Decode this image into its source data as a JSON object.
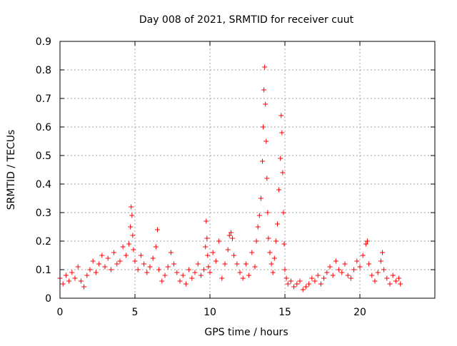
{
  "colors": {
    "series": "#ff0000",
    "grid": "#a0a0a0",
    "axis": "#000000"
  },
  "chart_data": {
    "type": "scatter",
    "title": "Day 008 of 2021, SRMTID for receiver cuut",
    "xlabel": "GPS time / hours",
    "ylabel": "SRMTID / TECUs",
    "xlim": [
      0,
      25
    ],
    "ylim": [
      0,
      0.9
    ],
    "grid": true,
    "marker": "plus",
    "x_ticks": [
      0,
      5,
      10,
      15,
      20
    ],
    "x_tick_labels": [
      "0",
      "5",
      "10",
      "15",
      "20"
    ],
    "y_ticks": [
      0,
      0.1,
      0.2,
      0.3,
      0.4,
      0.5,
      0.6,
      0.7,
      0.8,
      0.9
    ],
    "y_tick_labels": [
      "0",
      "0.1",
      "0.2",
      "0.3",
      "0.4",
      "0.5",
      "0.6",
      "0.7",
      "0.8",
      "0.9"
    ],
    "series": [
      {
        "name": "SRMTID",
        "x": [
          0.0,
          0.2,
          0.4,
          0.6,
          0.8,
          1.0,
          1.2,
          1.4,
          1.6,
          1.8,
          2.0,
          2.2,
          2.4,
          2.6,
          2.8,
          3.0,
          3.2,
          3.4,
          3.6,
          3.8,
          4.0,
          4.2,
          4.4,
          4.6,
          4.7,
          4.75,
          4.8,
          4.85,
          4.9,
          5.0,
          5.2,
          5.4,
          5.6,
          5.8,
          6.0,
          6.2,
          6.4,
          6.5,
          6.6,
          6.8,
          7.0,
          7.2,
          7.4,
          7.6,
          7.8,
          8.0,
          8.2,
          8.4,
          8.6,
          8.8,
          9.0,
          9.2,
          9.4,
          9.6,
          9.7,
          9.75,
          9.8,
          9.85,
          9.9,
          10.0,
          10.2,
          10.4,
          10.6,
          10.8,
          11.0,
          11.2,
          11.3,
          11.4,
          11.5,
          11.6,
          11.8,
          12.0,
          12.2,
          12.4,
          12.6,
          12.8,
          13.0,
          13.1,
          13.2,
          13.3,
          13.4,
          13.5,
          13.55,
          13.6,
          13.65,
          13.7,
          13.75,
          13.8,
          13.85,
          13.9,
          14.0,
          14.1,
          14.2,
          14.3,
          14.4,
          14.5,
          14.6,
          14.7,
          14.75,
          14.8,
          14.85,
          14.9,
          14.95,
          15.0,
          15.1,
          15.2,
          15.4,
          15.6,
          15.8,
          16.0,
          16.2,
          16.4,
          16.6,
          16.8,
          17.0,
          17.2,
          17.4,
          17.6,
          17.8,
          18.0,
          18.2,
          18.4,
          18.6,
          18.8,
          19.0,
          19.2,
          19.4,
          19.6,
          19.8,
          20.0,
          20.2,
          20.4,
          20.5,
          20.6,
          20.8,
          21.0,
          21.2,
          21.4,
          21.5,
          21.6,
          21.8,
          22.0,
          22.2,
          22.4,
          22.6,
          22.7
        ],
        "y": [
          0.07,
          0.05,
          0.08,
          0.06,
          0.09,
          0.07,
          0.11,
          0.06,
          0.04,
          0.08,
          0.1,
          0.13,
          0.09,
          0.12,
          0.15,
          0.11,
          0.14,
          0.1,
          0.16,
          0.12,
          0.13,
          0.18,
          0.15,
          0.19,
          0.25,
          0.32,
          0.29,
          0.22,
          0.17,
          0.13,
          0.1,
          0.15,
          0.12,
          0.09,
          0.11,
          0.14,
          0.18,
          0.24,
          0.1,
          0.06,
          0.08,
          0.11,
          0.16,
          0.12,
          0.09,
          0.06,
          0.08,
          0.05,
          0.1,
          0.07,
          0.09,
          0.12,
          0.08,
          0.1,
          0.18,
          0.27,
          0.21,
          0.15,
          0.11,
          0.09,
          0.16,
          0.13,
          0.2,
          0.07,
          0.12,
          0.17,
          0.22,
          0.23,
          0.21,
          0.15,
          0.12,
          0.09,
          0.07,
          0.12,
          0.08,
          0.16,
          0.11,
          0.2,
          0.25,
          0.29,
          0.35,
          0.48,
          0.6,
          0.73,
          0.81,
          0.68,
          0.55,
          0.42,
          0.3,
          0.21,
          0.16,
          0.12,
          0.09,
          0.14,
          0.2,
          0.26,
          0.38,
          0.49,
          0.64,
          0.58,
          0.44,
          0.3,
          0.19,
          0.1,
          0.07,
          0.05,
          0.06,
          0.04,
          0.05,
          0.06,
          0.03,
          0.04,
          0.05,
          0.07,
          0.06,
          0.08,
          0.05,
          0.07,
          0.09,
          0.11,
          0.08,
          0.13,
          0.1,
          0.09,
          0.12,
          0.08,
          0.07,
          0.1,
          0.13,
          0.11,
          0.15,
          0.19,
          0.2,
          0.12,
          0.08,
          0.06,
          0.09,
          0.13,
          0.16,
          0.1,
          0.07,
          0.05,
          0.08,
          0.06,
          0.07,
          0.05
        ]
      }
    ]
  }
}
